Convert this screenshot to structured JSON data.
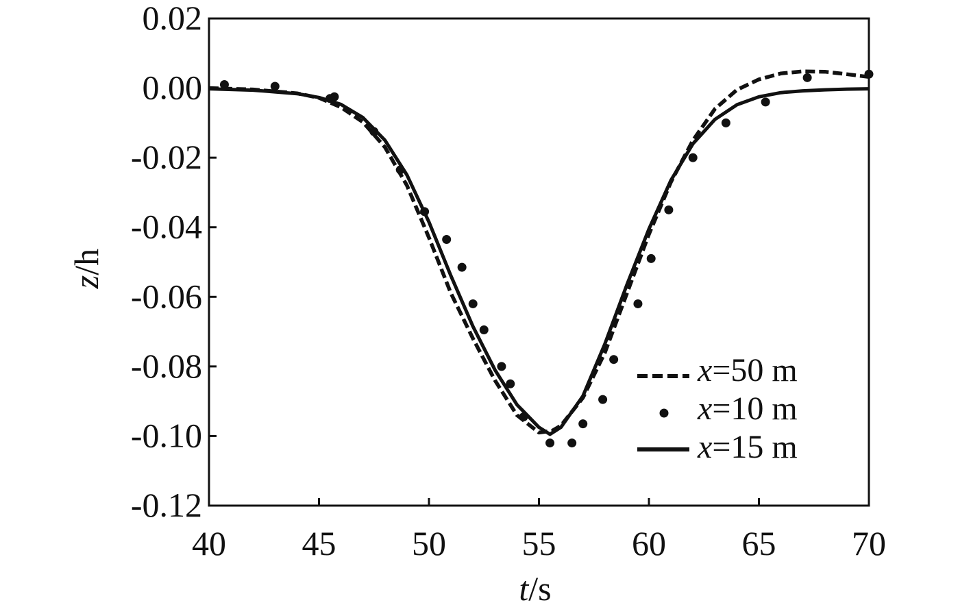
{
  "chart_data": {
    "type": "line",
    "title": "",
    "xlabel": {
      "var": "t",
      "unit": "/s"
    },
    "ylabel": {
      "var": "z",
      "unit": "/h"
    },
    "xlim": [
      40,
      70
    ],
    "ylim": [
      -0.12,
      0.02
    ],
    "xticks": [
      40,
      45,
      50,
      55,
      60,
      65,
      70
    ],
    "yticks": [
      0.02,
      0.0,
      -0.02,
      -0.04,
      -0.06,
      -0.08,
      -0.1,
      -0.12
    ],
    "xtick_labels": [
      "40",
      "45",
      "50",
      "55",
      "60",
      "65",
      "70"
    ],
    "ytick_labels": [
      "0.02",
      "0.00",
      "-0.02",
      "-0.04",
      "-0.06",
      "-0.08",
      "-0.10",
      "-0.12"
    ],
    "grid": false,
    "legend_position": "lower-right",
    "series": [
      {
        "name": "x=50 m",
        "name_var": "x",
        "name_rest": "=50 m",
        "style": "dashed",
        "color": "#111111",
        "points": [
          [
            40,
            0.0
          ],
          [
            42,
            -0.0004
          ],
          [
            44,
            -0.0015
          ],
          [
            45,
            -0.0028
          ],
          [
            46,
            -0.0055
          ],
          [
            47,
            -0.0098
          ],
          [
            48,
            -0.017
          ],
          [
            49,
            -0.028
          ],
          [
            50,
            -0.043
          ],
          [
            51,
            -0.059
          ],
          [
            52,
            -0.072
          ],
          [
            53,
            -0.084
          ],
          [
            54,
            -0.094
          ],
          [
            55,
            -0.099
          ],
          [
            55.6,
            -0.0985
          ],
          [
            56,
            -0.097
          ],
          [
            57,
            -0.089
          ],
          [
            58,
            -0.076
          ],
          [
            59,
            -0.059
          ],
          [
            60,
            -0.042
          ],
          [
            61,
            -0.027
          ],
          [
            62,
            -0.015
          ],
          [
            63,
            -0.006
          ],
          [
            64,
            -0.0005
          ],
          [
            65,
            0.0025
          ],
          [
            66,
            0.0042
          ],
          [
            67,
            0.0048
          ],
          [
            68,
            0.0047
          ],
          [
            69,
            0.004
          ],
          [
            70,
            0.0032
          ]
        ]
      },
      {
        "name": "x=10 m",
        "name_var": "x",
        "name_rest": "=10 m",
        "style": "dots",
        "color": "#111111",
        "points": [
          [
            40.7,
            0.001
          ],
          [
            43.0,
            0.0005
          ],
          [
            45.5,
            -0.003
          ],
          [
            45.7,
            -0.0025
          ],
          [
            47.5,
            -0.0125
          ],
          [
            48.7,
            -0.0235
          ],
          [
            49.8,
            -0.0355
          ],
          [
            50.8,
            -0.0435
          ],
          [
            51.5,
            -0.0515
          ],
          [
            52.0,
            -0.062
          ],
          [
            52.5,
            -0.0695
          ],
          [
            53.3,
            -0.08
          ],
          [
            53.7,
            -0.085
          ],
          [
            54.3,
            -0.0945
          ],
          [
            55.5,
            -0.102
          ],
          [
            56.5,
            -0.102
          ],
          [
            57.0,
            -0.0965
          ],
          [
            57.9,
            -0.0895
          ],
          [
            58.4,
            -0.078
          ],
          [
            59.5,
            -0.062
          ],
          [
            60.1,
            -0.049
          ],
          [
            60.9,
            -0.035
          ],
          [
            62.0,
            -0.02
          ],
          [
            63.5,
            -0.01
          ],
          [
            65.3,
            -0.004
          ],
          [
            67.2,
            0.003
          ],
          [
            70.0,
            0.004
          ]
        ]
      },
      {
        "name": "x=15 m",
        "name_var": "x",
        "name_rest": "=15 m",
        "style": "solid",
        "color": "#111111",
        "points": [
          [
            40,
            -0.0002
          ],
          [
            42,
            -0.0006
          ],
          [
            44,
            -0.0016
          ],
          [
            45,
            -0.0027
          ],
          [
            46,
            -0.0047
          ],
          [
            47,
            -0.0085
          ],
          [
            48,
            -0.015
          ],
          [
            49,
            -0.025
          ],
          [
            50,
            -0.0385
          ],
          [
            51,
            -0.054
          ],
          [
            52,
            -0.0685
          ],
          [
            53,
            -0.081
          ],
          [
            54,
            -0.091
          ],
          [
            55,
            -0.0975
          ],
          [
            55.5,
            -0.0995
          ],
          [
            56,
            -0.0975
          ],
          [
            57,
            -0.0885
          ],
          [
            58,
            -0.0735
          ],
          [
            59,
            -0.0565
          ],
          [
            60,
            -0.0405
          ],
          [
            61,
            -0.0265
          ],
          [
            62,
            -0.016
          ],
          [
            63,
            -0.009
          ],
          [
            64,
            -0.0048
          ],
          [
            65,
            -0.0025
          ],
          [
            66,
            -0.0013
          ],
          [
            67,
            -0.0008
          ],
          [
            68,
            -0.0005
          ],
          [
            69,
            -0.0003
          ],
          [
            70,
            -0.0002
          ]
        ]
      }
    ]
  }
}
